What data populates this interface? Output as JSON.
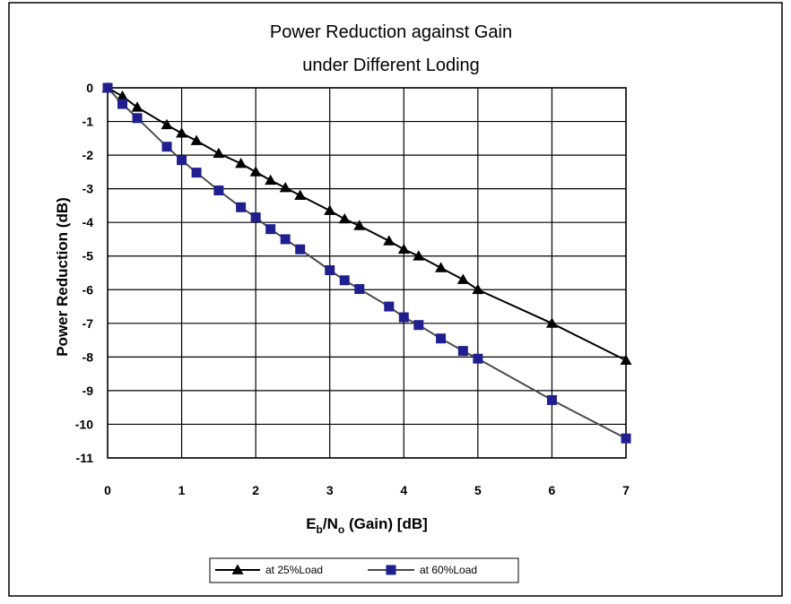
{
  "chart_data": {
    "type": "line",
    "title": "Power Reduction against Gain",
    "subtitle": "under Different Loding",
    "xlabel": {
      "main": "E",
      "sub1": "b",
      "slash": "/N",
      "sub2": "o",
      "rest": " (Gain) [dB]"
    },
    "ylabel": "Power Reduction  (dB)",
    "xlim": [
      0,
      7
    ],
    "ylim": [
      -11,
      0
    ],
    "xticks": [
      "0",
      "1",
      "2",
      "3",
      "4",
      "5",
      "6",
      "7"
    ],
    "yticks": [
      "0",
      "-1",
      "-2",
      "-3",
      "-4",
      "-5",
      "-6",
      "-7",
      "-8",
      "-9",
      "-10",
      "-11"
    ],
    "grid": true,
    "legend_position": "bottom",
    "series": [
      {
        "name": "at 25%Load",
        "marker": "triangle",
        "color": "#000000",
        "x": [
          0,
          0.2,
          0.4,
          0.8,
          1.0,
          1.2,
          1.5,
          1.8,
          2.0,
          2.2,
          2.4,
          2.6,
          3.0,
          3.2,
          3.4,
          3.8,
          4.0,
          4.2,
          4.5,
          4.8,
          5.0,
          6.0,
          7.0
        ],
        "y": [
          0,
          -0.25,
          -0.58,
          -1.1,
          -1.35,
          -1.57,
          -1.95,
          -2.25,
          -2.5,
          -2.75,
          -2.97,
          -3.2,
          -3.65,
          -3.9,
          -4.1,
          -4.55,
          -4.8,
          -5.0,
          -5.35,
          -5.7,
          -6.0,
          -7.0,
          -8.1
        ]
      },
      {
        "name": "at 60%Load",
        "marker": "square",
        "color": "#1f1f8f",
        "x": [
          0,
          0.2,
          0.4,
          0.8,
          1.0,
          1.2,
          1.5,
          1.8,
          2.0,
          2.2,
          2.4,
          2.6,
          3.0,
          3.2,
          3.4,
          3.8,
          4.0,
          4.2,
          4.5,
          4.8,
          5.0,
          6.0,
          7.0
        ],
        "y": [
          0,
          -0.48,
          -0.9,
          -1.75,
          -2.15,
          -2.52,
          -3.05,
          -3.55,
          -3.85,
          -4.2,
          -4.5,
          -4.8,
          -5.42,
          -5.72,
          -5.98,
          -6.5,
          -6.82,
          -7.05,
          -7.45,
          -7.82,
          -8.05,
          -9.28,
          -10.42
        ]
      }
    ]
  },
  "colors": {
    "line_25": "#000000",
    "line_60": "#4a4a4a",
    "marker_60": "#1f1f8f"
  }
}
